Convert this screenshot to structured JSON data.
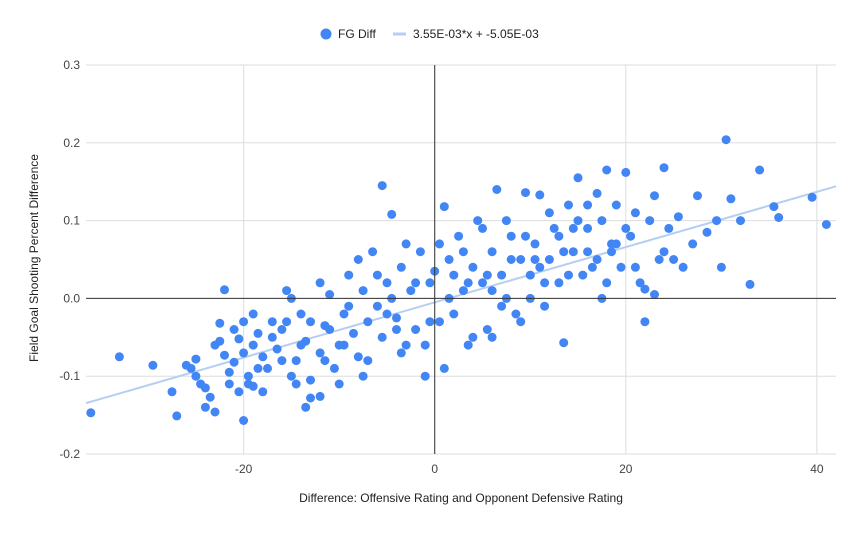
{
  "chart_data": {
    "type": "scatter",
    "xlabel": "Difference: Offensive Rating and Opponent Defensive Rating",
    "ylabel": "Field Goal Shooting Percent Difference",
    "xlim": [
      -36.5,
      42
    ],
    "ylim": [
      -0.2,
      0.3
    ],
    "x_ticks": [
      -20,
      0,
      20,
      40
    ],
    "y_ticks": [
      -0.2,
      -0.1,
      0.0,
      0.1,
      0.2,
      0.3
    ],
    "x_tick_labels": [
      "-20",
      "0",
      "20",
      "40"
    ],
    "y_tick_labels": [
      "-0.2",
      "-0.1",
      "0.0",
      "0.1",
      "0.2",
      "0.3"
    ],
    "grid": true,
    "legend_position": "top",
    "colors": {
      "points": "#4285f4",
      "trendline": "#b5cff2",
      "grid": "#dddddd",
      "zero_axis": "#333333"
    },
    "series": [
      {
        "name": "FG Diff",
        "type": "scatter",
        "points": [
          [
            -36,
            -0.147
          ],
          [
            -33,
            -0.075
          ],
          [
            -29.5,
            -0.086
          ],
          [
            -27.5,
            -0.12
          ],
          [
            -27,
            -0.151
          ],
          [
            -26,
            -0.086
          ],
          [
            -25.5,
            -0.09
          ],
          [
            -25,
            -0.078
          ],
          [
            -24.5,
            -0.11
          ],
          [
            -24,
            -0.115
          ],
          [
            -23.5,
            -0.127
          ],
          [
            -23,
            -0.146
          ],
          [
            -22.5,
            -0.055
          ],
          [
            -22,
            -0.073
          ],
          [
            -21.5,
            -0.095
          ],
          [
            -21,
            -0.082
          ],
          [
            -20.5,
            -0.052
          ],
          [
            -20,
            -0.03
          ],
          [
            -19.5,
            -0.1
          ],
          [
            -19,
            -0.113
          ],
          [
            -22,
            0.011
          ],
          [
            -22.5,
            -0.032
          ],
          [
            -20,
            -0.157
          ],
          [
            -20.5,
            -0.12
          ],
          [
            -19,
            -0.06
          ],
          [
            -18.5,
            -0.045
          ],
          [
            -18,
            -0.075
          ],
          [
            -17.5,
            -0.09
          ],
          [
            -17,
            -0.03
          ],
          [
            -16.5,
            -0.065
          ],
          [
            -16,
            -0.04
          ],
          [
            -15.5,
            0.01
          ],
          [
            -15,
            -0.1
          ],
          [
            -14.5,
            -0.08
          ],
          [
            -14,
            -0.02
          ],
          [
            -13.5,
            -0.055
          ],
          [
            -13,
            -0.105
          ],
          [
            -13.5,
            -0.14
          ],
          [
            -13,
            -0.128
          ],
          [
            -12,
            -0.126
          ],
          [
            -12,
            -0.07
          ],
          [
            -11.5,
            -0.035
          ],
          [
            -11,
            0.005
          ],
          [
            -10.5,
            -0.09
          ],
          [
            -10,
            -0.06
          ],
          [
            -9.5,
            -0.02
          ],
          [
            -9,
            0.03
          ],
          [
            -8.5,
            -0.045
          ],
          [
            -8,
            -0.075
          ],
          [
            -7.5,
            0.01
          ],
          [
            -7,
            -0.03
          ],
          [
            -6.5,
            0.06
          ],
          [
            -6,
            -0.01
          ],
          [
            -5.5,
            -0.05
          ],
          [
            -5,
            0.02
          ],
          [
            -4.5,
            0.108
          ],
          [
            -4,
            -0.025
          ],
          [
            -5.5,
            0.145
          ],
          [
            -3.5,
            0.04
          ],
          [
            -3,
            -0.06
          ],
          [
            -2.5,
            0.01
          ],
          [
            -2,
            -0.04
          ],
          [
            -1.5,
            0.06
          ],
          [
            -1,
            -0.1
          ],
          [
            -0.5,
            0.02
          ],
          [
            0,
            0.035
          ],
          [
            0.5,
            -0.03
          ],
          [
            1,
            0.118
          ],
          [
            1.5,
            0.05
          ],
          [
            2,
            -0.02
          ],
          [
            2.5,
            0.08
          ],
          [
            3,
            0.01
          ],
          [
            3.5,
            -0.06
          ],
          [
            4,
            0.04
          ],
          [
            4.5,
            0.1
          ],
          [
            5,
            0.02
          ],
          [
            5.5,
            -0.04
          ],
          [
            6,
            0.06
          ],
          [
            6.5,
            0.14
          ],
          [
            7,
            0.03
          ],
          [
            7.5,
            0.0
          ],
          [
            8,
            0.08
          ],
          [
            8.5,
            -0.02
          ],
          [
            9,
            0.05
          ],
          [
            9.5,
            0.136
          ],
          [
            10,
            0.03
          ],
          [
            10.5,
            0.07
          ],
          [
            11,
            0.133
          ],
          [
            11.5,
            -0.01
          ],
          [
            12,
            0.05
          ],
          [
            12.5,
            0.09
          ],
          [
            13,
            0.02
          ],
          [
            13.5,
            -0.057
          ],
          [
            14,
            0.12
          ],
          [
            14.5,
            0.06
          ],
          [
            15,
            0.155
          ],
          [
            15.5,
            0.03
          ],
          [
            16,
            0.09
          ],
          [
            16.5,
            0.04
          ],
          [
            17,
            0.135
          ],
          [
            17.5,
            0.1
          ],
          [
            18,
            0.165
          ],
          [
            18.5,
            0.06
          ],
          [
            19,
            0.12
          ],
          [
            19.5,
            0.04
          ],
          [
            20,
            0.162
          ],
          [
            20.5,
            0.08
          ],
          [
            21,
            0.11
          ],
          [
            21.5,
            0.02
          ],
          [
            22,
            -0.03
          ],
          [
            22.5,
            0.1
          ],
          [
            23,
            0.132
          ],
          [
            23.5,
            0.05
          ],
          [
            24,
            0.168
          ],
          [
            24.5,
            0.09
          ],
          [
            25,
            0.05
          ],
          [
            25.5,
            0.105
          ],
          [
            26,
            0.04
          ],
          [
            27,
            0.07
          ],
          [
            27.5,
            0.132
          ],
          [
            28.5,
            0.085
          ],
          [
            29.5,
            0.1
          ],
          [
            30,
            0.04
          ],
          [
            30.5,
            0.204
          ],
          [
            31,
            0.128
          ],
          [
            32,
            0.1
          ],
          [
            33,
            0.018
          ],
          [
            34,
            0.165
          ],
          [
            35.5,
            0.118
          ],
          [
            36,
            0.104
          ],
          [
            39.5,
            0.13
          ],
          [
            41,
            0.095
          ],
          [
            22,
            0.012
          ],
          [
            23,
            0.005
          ],
          [
            -21.5,
            -0.11
          ],
          [
            -18,
            -0.12
          ],
          [
            -15,
            0.0
          ],
          [
            -11,
            -0.04
          ],
          [
            -7,
            -0.08
          ],
          [
            -3,
            0.07
          ],
          [
            1,
            -0.09
          ],
          [
            5,
            0.09
          ],
          [
            9,
            -0.03
          ],
          [
            13,
            0.08
          ],
          [
            17,
            0.05
          ],
          [
            -23,
            -0.06
          ],
          [
            -19,
            -0.02
          ],
          [
            -14,
            -0.06
          ],
          [
            -9,
            -0.01
          ],
          [
            -4,
            -0.04
          ],
          [
            2,
            0.03
          ],
          [
            6,
            -0.05
          ],
          [
            11,
            0.04
          ],
          [
            15,
            0.1
          ],
          [
            19,
            0.07
          ],
          [
            -25,
            -0.1
          ],
          [
            -17,
            -0.05
          ],
          [
            -12,
            0.02
          ],
          [
            -8,
            0.05
          ],
          [
            -2,
            0.02
          ],
          [
            3,
            0.06
          ],
          [
            7,
            -0.01
          ],
          [
            12,
            0.11
          ],
          [
            16,
            0.06
          ],
          [
            20,
            0.09
          ],
          [
            -20,
            -0.07
          ],
          [
            -16,
            -0.08
          ],
          [
            -10,
            -0.11
          ],
          [
            -6,
            0.03
          ],
          [
            -1,
            -0.06
          ],
          [
            4,
            -0.05
          ],
          [
            8,
            0.05
          ],
          [
            10,
            0.0
          ],
          [
            14,
            0.03
          ],
          [
            18,
            0.02
          ],
          [
            -21,
            -0.04
          ],
          [
            -13,
            -0.03
          ],
          [
            -7.5,
            -0.1
          ],
          [
            -3.5,
            -0.07
          ],
          [
            0.5,
            0.07
          ],
          [
            5.5,
            0.03
          ],
          [
            9.5,
            0.08
          ],
          [
            13.5,
            0.06
          ],
          [
            17.5,
            0.0
          ],
          [
            21,
            0.04
          ],
          [
            -24,
            -0.14
          ],
          [
            -18.5,
            -0.09
          ],
          [
            -15.5,
            -0.03
          ],
          [
            -11.5,
            -0.08
          ],
          [
            -5,
            -0.02
          ],
          [
            -0.5,
            -0.03
          ],
          [
            3.5,
            0.02
          ],
          [
            7.5,
            0.1
          ],
          [
            11.5,
            0.02
          ],
          [
            16,
            0.12
          ],
          [
            -19.5,
            -0.11
          ],
          [
            -14.5,
            -0.11
          ],
          [
            -9.5,
            -0.06
          ],
          [
            -4.5,
            0.0
          ],
          [
            1.5,
            0.0
          ],
          [
            6,
            0.01
          ],
          [
            10.5,
            0.05
          ],
          [
            14.5,
            0.09
          ],
          [
            18.5,
            0.07
          ],
          [
            24,
            0.06
          ]
        ]
      },
      {
        "name": "3.55E-03*x + -5.05E-03",
        "type": "line",
        "slope": 0.00355,
        "intercept": -0.00505,
        "x_range": [
          -36.5,
          42
        ]
      }
    ]
  }
}
